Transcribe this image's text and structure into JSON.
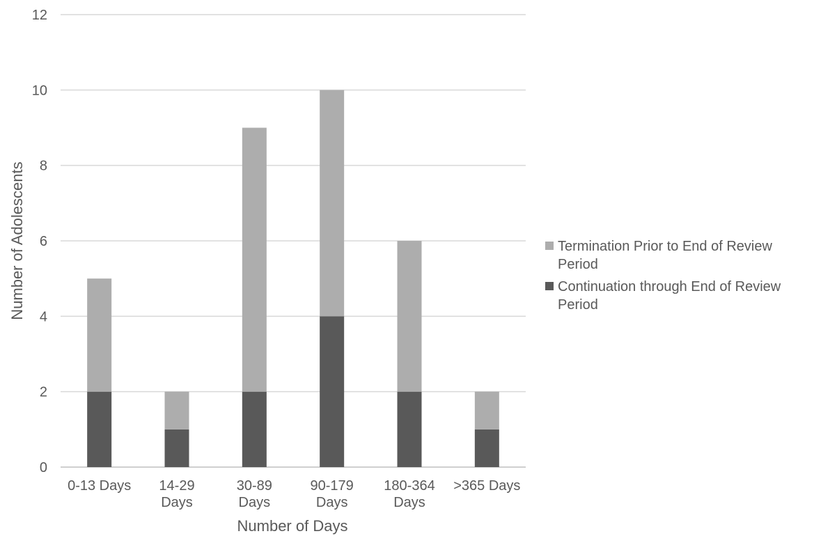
{
  "chart_data": {
    "type": "bar",
    "stacked": true,
    "categories": [
      [
        "0-13 Days"
      ],
      [
        "14-29",
        "Days"
      ],
      [
        "30-89",
        "Days"
      ],
      [
        "90-179",
        "Days"
      ],
      [
        "180-364",
        "Days"
      ],
      [
        ">365 Days"
      ]
    ],
    "series": [
      {
        "name": "Continuation through End of Review Period",
        "color": "#595959",
        "values": [
          2,
          1,
          2,
          4,
          2,
          1
        ]
      },
      {
        "name": "Termination Prior to End of Review Period",
        "color": "#adadad",
        "values": [
          3,
          1,
          7,
          6,
          4,
          1
        ]
      }
    ],
    "xlabel": "Number of Days",
    "ylabel": "Number of Adolescents",
    "ylim": [
      0,
      12
    ],
    "yticks": [
      0,
      2,
      4,
      6,
      8,
      10,
      12
    ],
    "grid": true,
    "legend_position": "right"
  },
  "legend": [
    {
      "lines": [
        "Termination Prior to End of Review",
        "Period"
      ],
      "color": "#adadad"
    },
    {
      "lines": [
        "Continuation through End of Review",
        "Period"
      ],
      "color": "#595959"
    }
  ]
}
